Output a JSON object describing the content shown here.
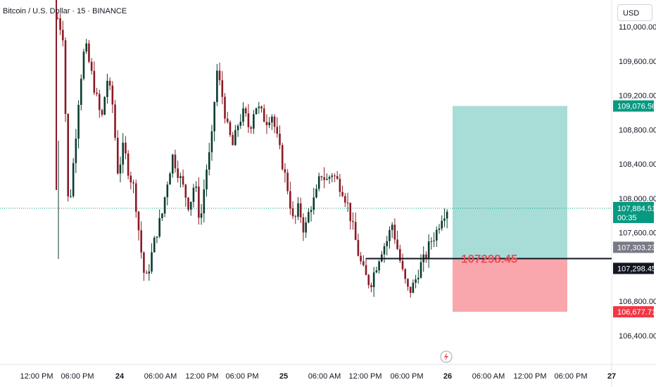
{
  "header": {
    "symbol_title": "Bitcoin / U.S. Dollar · 15 · BINANCE"
  },
  "currency_button": "USD",
  "price_axis": {
    "ticks": [
      "110,000.00",
      "109,600.00",
      "109,200.00",
      "108,800.00",
      "108,400.00",
      "108,000.00",
      "107,600.00",
      "106,800.00",
      "106,400.00"
    ]
  },
  "time_axis": {
    "ticks": [
      "12:00 PM",
      "06:00 PM",
      "24",
      "06:00 AM",
      "12:00 PM",
      "06:00 PM",
      "25",
      "06:00 AM",
      "12:00 PM",
      "06:00 PM",
      "26",
      "06:00 AM",
      "12:00 PM",
      "06:00 PM",
      "27"
    ]
  },
  "price_labels": {
    "target": "109,076.56",
    "current": "107,884.51",
    "countdown": "00:35",
    "entry_upper": "107,303.23",
    "entry": "107,298.45",
    "stop": "106,677.71"
  },
  "position_tool": {
    "entry_text": "107298.45",
    "profit_color": "#a8ddd7",
    "loss_color": "#f9a7ad"
  },
  "colors": {
    "up": "#089981",
    "down": "#f23645",
    "candle_up": "#0b3d2e",
    "candle_down": "#8a1a24",
    "current_price": "#089981",
    "entry_line": "#131722"
  },
  "chart_data": {
    "type": "candlestick",
    "symbol": "BTC/USD",
    "interval": "15",
    "exchange": "BINANCE",
    "ylim": [
      106300,
      110080
    ],
    "close_path": [
      [
        0,
        110100
      ],
      [
        1,
        109900
      ],
      [
        1.5,
        107800
      ],
      [
        3,
        108500
      ],
      [
        4,
        109300
      ],
      [
        5,
        109800
      ],
      [
        6,
        109500
      ],
      [
        7,
        109200
      ],
      [
        8,
        108900
      ],
      [
        9,
        109400
      ],
      [
        10,
        109100
      ],
      [
        11,
        108300
      ],
      [
        12,
        108600
      ],
      [
        13,
        108300
      ],
      [
        14,
        108100
      ],
      [
        15,
        107500
      ],
      [
        16,
        107000
      ],
      [
        17,
        107300
      ],
      [
        18,
        107600
      ],
      [
        19,
        107800
      ],
      [
        20,
        108200
      ],
      [
        21,
        108500
      ],
      [
        22,
        108300
      ],
      [
        23,
        108100
      ],
      [
        24,
        107900
      ],
      [
        25,
        108200
      ],
      [
        26,
        107700
      ],
      [
        27,
        108300
      ],
      [
        28,
        108600
      ],
      [
        29,
        109500
      ],
      [
        30,
        109200
      ],
      [
        31,
        108800
      ],
      [
        32,
        108600
      ],
      [
        33,
        108900
      ],
      [
        34,
        109000
      ],
      [
        35,
        108800
      ],
      [
        36,
        109100
      ],
      [
        37,
        109000
      ],
      [
        38,
        108900
      ],
      [
        39,
        109000
      ],
      [
        40,
        108700
      ],
      [
        41,
        108400
      ],
      [
        42,
        108100
      ],
      [
        43,
        107700
      ],
      [
        44,
        107900
      ],
      [
        45,
        107600
      ],
      [
        46,
        107900
      ],
      [
        47,
        108000
      ],
      [
        48,
        108300
      ],
      [
        49,
        108200
      ],
      [
        50,
        108300
      ],
      [
        51,
        108200
      ],
      [
        52,
        108100
      ],
      [
        53,
        107900
      ],
      [
        54,
        107600
      ],
      [
        55,
        107300
      ],
      [
        56,
        107100
      ],
      [
        57,
        107000
      ],
      [
        58,
        107200
      ],
      [
        59,
        107400
      ],
      [
        60,
        107500
      ],
      [
        61,
        107700
      ],
      [
        62,
        107400
      ],
      [
        63,
        107100
      ],
      [
        64,
        106900
      ],
      [
        65,
        107000
      ],
      [
        66,
        107200
      ],
      [
        67,
        107300
      ],
      [
        68,
        107500
      ],
      [
        69,
        107600
      ],
      [
        70,
        107800
      ],
      [
        71,
        107884.51
      ]
    ],
    "position": {
      "entry": 107298.45,
      "target": 109076.56,
      "stop": 106677.71
    }
  }
}
